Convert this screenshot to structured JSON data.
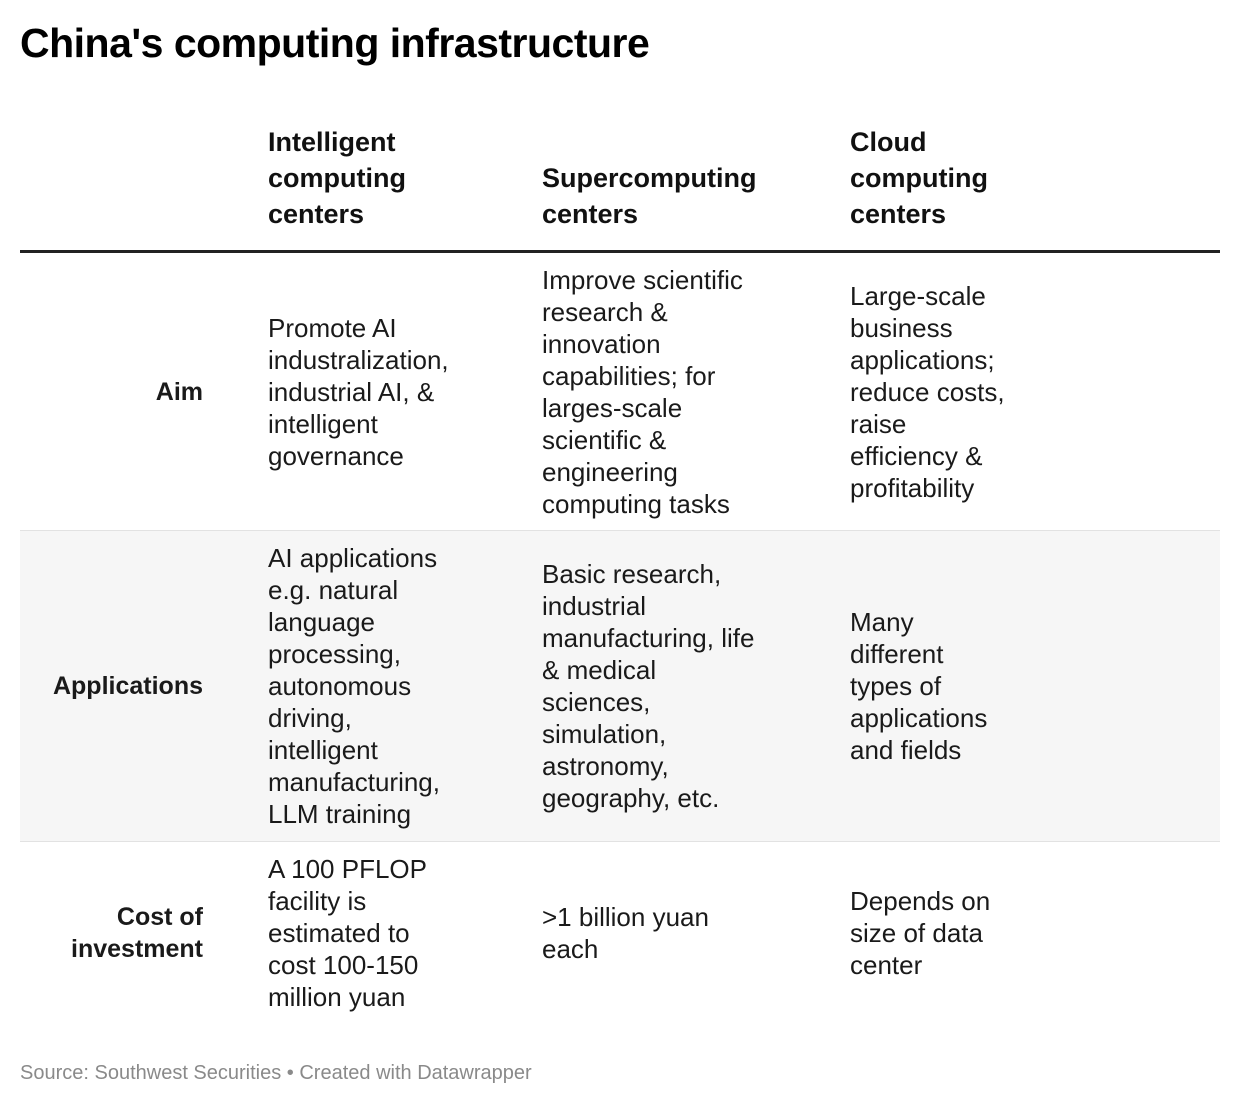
{
  "title": "China's computing infrastructure",
  "table": {
    "columns": [
      "",
      "Intelligent\ncomputing\ncenters",
      "Supercomputing\ncenters",
      "Cloud\ncomputing\ncenters"
    ],
    "rows": [
      {
        "label": "Aim",
        "cells": [
          "Promote AI\nindustralization,\nindustrial AI, &\nintelligent\ngovernance",
          "Improve scientific\nresearch &\ninnovation\ncapabilities; for\nlarges-scale\nscientific &\nengineering\ncomputing tasks",
          "Large-scale\nbusiness\napplications;\nreduce costs,\nraise\nefficiency &\nprofitability"
        ]
      },
      {
        "label": "Applications",
        "cells": [
          "AI applications\ne.g. natural\nlanguage\nprocessing,\nautonomous\ndriving,\nintelligent\nmanufacturing,\nLLM training",
          "Basic research,\nindustrial\nmanufacturing, life\n& medical\nsciences,\nsimulation,\nastronomy,\ngeography, etc.",
          "Many\ndifferent\ntypes of\napplications\nand fields"
        ]
      },
      {
        "label": "Cost of\ninvestment",
        "cells": [
          "A 100 PFLOP\nfacility is\nestimated to\ncost 100-150\nmillion yuan",
          ">1 billion yuan\neach",
          "Depends on\nsize of data\ncenter"
        ]
      }
    ]
  },
  "footer": "Source: Southwest Securities • Created with Datawrapper"
}
